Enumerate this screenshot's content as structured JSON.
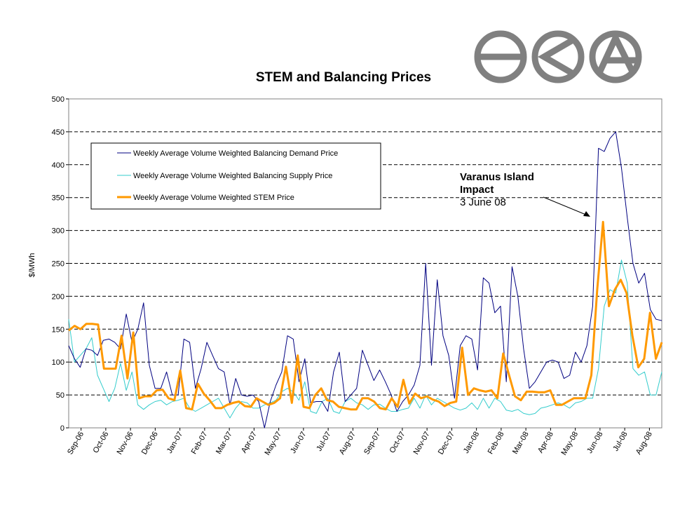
{
  "chart_data": {
    "type": "line",
    "title": "STEM and Balancing Prices",
    "xlabel": "",
    "ylabel": "$/MWh",
    "ylim": [
      0,
      500
    ],
    "yticks": [
      0,
      50,
      100,
      150,
      200,
      250,
      300,
      350,
      400,
      450,
      500
    ],
    "xtick_labels": [
      "Sep-06",
      "Oct-06",
      "Nov-06",
      "Dec-06",
      "Jan-07",
      "Feb-07",
      "Mar-07",
      "Apr-07",
      "May-07",
      "Jun-07",
      "Jul-07",
      "Aug-07",
      "Sep-07",
      "Oct-07",
      "Nov-07",
      "Dec-07",
      "Jan-08",
      "Feb-08",
      "Mar-08",
      "Apr-08",
      "May-08",
      "Jun-08",
      "Jul-08",
      "Aug-08"
    ],
    "grid": "horizontal dashed",
    "legend_position": "top-left",
    "annotation": {
      "line1": "Varanus Island",
      "line2": "Impact",
      "line3": "3 June 08"
    },
    "series": [
      {
        "name": "Weekly Average Volume Weighted Balancing Demand Price",
        "color": "#000080",
        "width": 1,
        "values": [
          125,
          105,
          92,
          120,
          118,
          110,
          133,
          135,
          130,
          120,
          173,
          130,
          150,
          190,
          95,
          60,
          60,
          85,
          50,
          50,
          135,
          130,
          60,
          90,
          130,
          110,
          90,
          85,
          35,
          75,
          50,
          48,
          50,
          40,
          0,
          40,
          65,
          85,
          140,
          135,
          70,
          105,
          38,
          40,
          40,
          25,
          85,
          115,
          40,
          50,
          60,
          118,
          95,
          72,
          88,
          70,
          50,
          25,
          40,
          50,
          65,
          95,
          250,
          95,
          225,
          140,
          110,
          45,
          125,
          140,
          135,
          88,
          228,
          220,
          175,
          185,
          70,
          245,
          200,
          120,
          60,
          70,
          85,
          100,
          103,
          100,
          75,
          80,
          115,
          100,
          125,
          185,
          425,
          420,
          440,
          450,
          395,
          320,
          250,
          220,
          235,
          180,
          165,
          163
        ]
      },
      {
        "name": "Weekly Average Volume Weighted Balancing Supply Price",
        "color": "#33CCCC",
        "width": 1,
        "values": [
          165,
          100,
          110,
          120,
          137,
          80,
          60,
          40,
          60,
          98,
          57,
          85,
          35,
          28,
          35,
          40,
          42,
          35,
          40,
          42,
          45,
          30,
          25,
          30,
          35,
          40,
          45,
          30,
          15,
          30,
          40,
          38,
          30,
          30,
          35,
          38,
          42,
          55,
          60,
          55,
          42,
          70,
          25,
          22,
          40,
          45,
          25,
          22,
          40,
          45,
          38,
          35,
          28,
          35,
          36,
          30,
          25,
          25,
          28,
          30,
          45,
          30,
          50,
          35,
          45,
          40,
          35,
          30,
          27,
          30,
          38,
          28,
          45,
          30,
          45,
          40,
          27,
          25,
          28,
          22,
          20,
          22,
          30,
          32,
          35,
          38,
          35,
          30,
          38,
          40,
          45,
          45,
          90,
          185,
          210,
          205,
          255,
          220,
          90,
          80,
          85,
          50,
          50,
          85
        ]
      },
      {
        "name": "Weekly Average Volume Weighted STEM Price",
        "color": "#FF9900",
        "width": 3,
        "values": [
          148,
          155,
          150,
          158,
          158,
          157,
          90,
          90,
          90,
          140,
          75,
          145,
          45,
          48,
          48,
          57,
          58,
          45,
          42,
          87,
          30,
          28,
          67,
          52,
          42,
          30,
          30,
          35,
          38,
          40,
          33,
          32,
          45,
          40,
          35,
          38,
          45,
          93,
          38,
          110,
          32,
          30,
          50,
          60,
          42,
          40,
          32,
          30,
          28,
          28,
          45,
          45,
          40,
          30,
          28,
          45,
          32,
          73,
          37,
          52,
          45,
          48,
          43,
          40,
          33,
          38,
          40,
          122,
          50,
          60,
          57,
          55,
          57,
          45,
          113,
          80,
          48,
          42,
          55,
          55,
          54,
          54,
          57,
          35,
          35,
          40,
          45,
          45,
          45,
          80,
          210,
          313,
          185,
          210,
          225,
          205,
          140,
          92,
          105,
          175,
          105,
          130
        ]
      }
    ]
  },
  "logo": {
    "name": "company logo"
  }
}
